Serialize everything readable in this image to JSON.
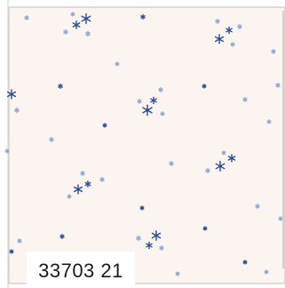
{
  "fabric": {
    "background_color": "#fbf4f1",
    "border_color": "#cfc8c4",
    "star_dark_color": "#2b4f93",
    "star_light_color": "#8ea8cf"
  },
  "label": {
    "code": "33703 21"
  }
}
